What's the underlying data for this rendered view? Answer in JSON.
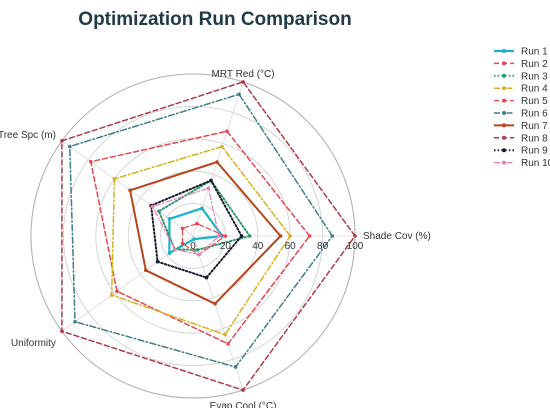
{
  "chart_data": {
    "type": "radar",
    "title": "Optimization Run Comparison",
    "axes": [
      "Shade Cov (%)",
      "MRT Red (°C)",
      "Tree Spc (m)",
      "Uniformity",
      "Evap Cool (°C)"
    ],
    "rticks": [
      "0",
      "20",
      "40",
      "60",
      "80",
      "100"
    ],
    "rmax": 100,
    "grid": true,
    "legend_position": "top-right",
    "series": [
      {
        "name": "Run 1",
        "color": "#1ab3c7",
        "dash": "solid",
        "marker": "circle",
        "width": 2.2,
        "values": [
          18,
          18,
          18,
          18,
          2
        ]
      },
      {
        "name": "Run 2",
        "color": "#e8474d",
        "dash": "dashed",
        "marker": "circle",
        "width": 1.5,
        "values": [
          72,
          68,
          78,
          58,
          70
        ]
      },
      {
        "name": "Run 3",
        "color": "#2e9a6e",
        "dash": "dotted",
        "marker": "circle",
        "width": 2.0,
        "values": [
          35,
          36,
          26,
          14,
          9
        ]
      },
      {
        "name": "Run 4",
        "color": "#d6b21f",
        "dash": "dashdot",
        "marker": "circle",
        "width": 1.5,
        "values": [
          60,
          58,
          60,
          62,
          64
        ]
      },
      {
        "name": "Run 5",
        "color": "#e8474d",
        "dash": "dashed",
        "marker": "circle",
        "width": 1.2,
        "values": [
          20,
          8,
          8,
          8,
          12
        ]
      },
      {
        "name": "Run 6",
        "color": "#3f7f86",
        "dash": "dashdot",
        "marker": "circle",
        "width": 1.5,
        "values": [
          86,
          92,
          94,
          90,
          85
        ]
      },
      {
        "name": "Run 7",
        "color": "#b5451b",
        "dash": "solid",
        "marker": "circle",
        "width": 2.0,
        "values": [
          54,
          48,
          48,
          36,
          44
        ]
      },
      {
        "name": "Run 8",
        "color": "#b03a48",
        "dash": "dashed",
        "marker": "circle",
        "width": 1.5,
        "values": [
          100,
          100,
          100,
          100,
          100
        ]
      },
      {
        "name": "Run 9",
        "color": "#1a1a2e",
        "dash": "dotted",
        "marker": "circle",
        "width": 2.0,
        "values": [
          30,
          36,
          32,
          27,
          27
        ]
      },
      {
        "name": "Run 10",
        "color": "#ee7eb6",
        "dash": "dashdot",
        "marker": "circle",
        "width": 1.2,
        "values": [
          16,
          31,
          31,
          14,
          12
        ]
      }
    ]
  }
}
